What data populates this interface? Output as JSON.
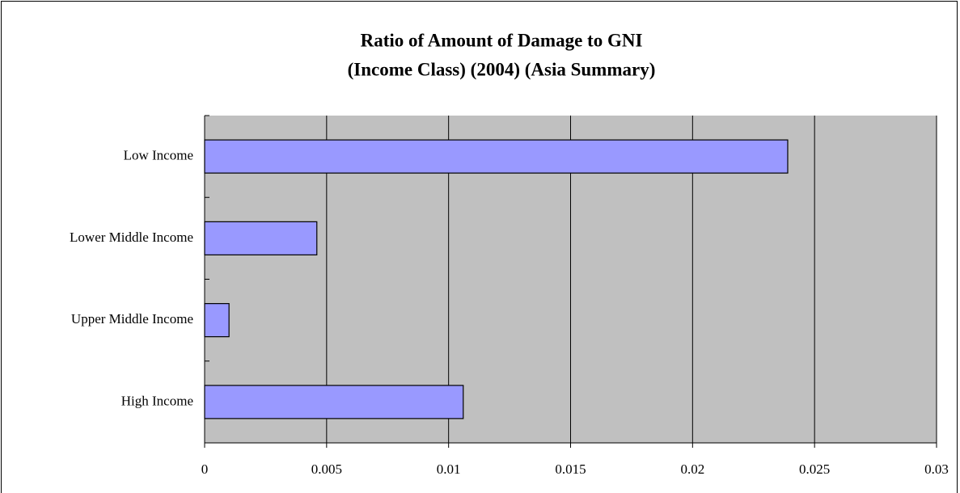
{
  "chart_data": {
    "type": "bar",
    "orientation": "horizontal",
    "title": [
      "Ratio of Amount of Damage to GNI",
      "(Income Class) (2004) (Asia Summary)"
    ],
    "categories": [
      "Low Income",
      "Lower Middle Income",
      "Upper Middle Income",
      "High Income"
    ],
    "values": [
      0.0239,
      0.0046,
      0.001,
      0.0106
    ],
    "color": "#9999ff",
    "xlim": [
      0,
      0.03
    ],
    "xticks": [
      0,
      0.005,
      0.01,
      0.015,
      0.02,
      0.025,
      0.03
    ],
    "grid": true
  }
}
